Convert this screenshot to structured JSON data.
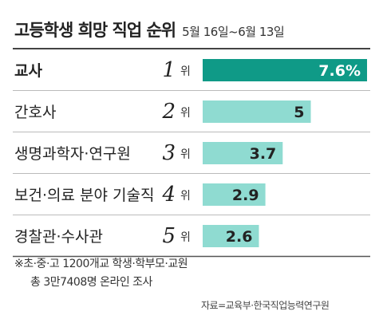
{
  "title": "고등학생 희망 직업 순위",
  "period": "5월 16일~6월 13일",
  "rank_unit": "위",
  "colors": {
    "highlight": "#0f9a87",
    "bar": "#8fdbd1",
    "highlight_label": "#ffffff",
    "bar_label": "#222222"
  },
  "chart_data": {
    "type": "bar",
    "orientation": "horizontal",
    "unit": "%",
    "categories": [
      "교사",
      "간호사",
      "생명과학자·연구원",
      "보건·의료 분야 기술직",
      "경찰관·수사관"
    ],
    "ranks": [
      1,
      2,
      3,
      4,
      5
    ],
    "values": [
      7.6,
      5,
      3.7,
      2.9,
      2.6
    ],
    "value_labels": [
      "7.6%",
      "5",
      "3.7",
      "2.9",
      "2.6"
    ],
    "highlight_index": 0,
    "xlim": [
      0,
      7.6
    ]
  },
  "footnote": {
    "line1": "※초·중·고 1200개교 학생·학부모·교원",
    "line2": "총 3만7408명 온라인 조사"
  },
  "source": "자료=교육부·한국직업능력연구원"
}
